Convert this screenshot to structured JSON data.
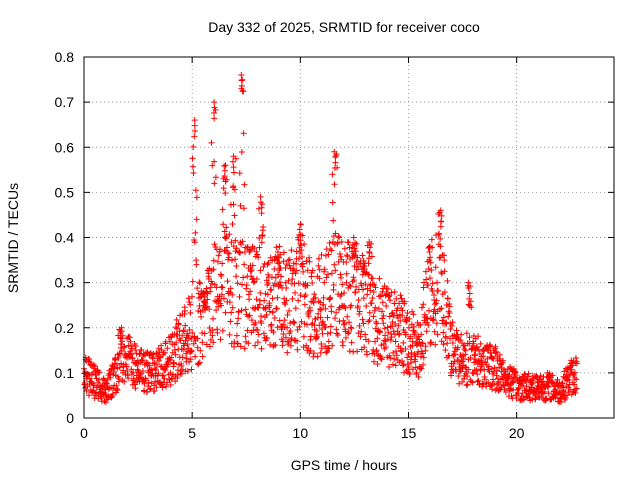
{
  "chart_data": {
    "type": "scatter",
    "title": "Day 332 of 2025, SRMTID for receiver coco",
    "xlabel": "GPS time / hours",
    "ylabel": "SRMTID / TECUs",
    "xlim": [
      0,
      24.5
    ],
    "ylim": [
      0,
      0.8
    ],
    "xticks": [
      0,
      5,
      10,
      15,
      20
    ],
    "yticks": [
      0,
      0.1,
      0.2,
      0.3,
      0.4,
      0.5,
      0.6,
      0.7,
      0.8
    ],
    "xtick_labels": [
      "0",
      "5",
      "10",
      "15",
      "20"
    ],
    "ytick_labels": [
      "0",
      "0.1",
      "0.2",
      "0.3",
      "0.4",
      "0.5",
      "0.6",
      "0.7",
      "0.8"
    ],
    "grid": true,
    "marker": "+",
    "color": "#ff0000",
    "x_range_data": [
      0,
      22.8
    ],
    "profile": [
      [
        0.0,
        0.1
      ],
      [
        0.5,
        0.08
      ],
      [
        1.0,
        0.06
      ],
      [
        1.5,
        0.1
      ],
      [
        2.0,
        0.13
      ],
      [
        2.5,
        0.11
      ],
      [
        3.0,
        0.1
      ],
      [
        3.5,
        0.11
      ],
      [
        4.0,
        0.13
      ],
      [
        4.5,
        0.17
      ],
      [
        5.0,
        0.19
      ],
      [
        5.5,
        0.22
      ],
      [
        6.0,
        0.27
      ],
      [
        6.5,
        0.29
      ],
      [
        7.0,
        0.28
      ],
      [
        7.5,
        0.27
      ],
      [
        8.0,
        0.26
      ],
      [
        8.5,
        0.25
      ],
      [
        9.0,
        0.25
      ],
      [
        9.5,
        0.26
      ],
      [
        10.0,
        0.28
      ],
      [
        10.5,
        0.24
      ],
      [
        11.0,
        0.25
      ],
      [
        11.5,
        0.28
      ],
      [
        12.0,
        0.28
      ],
      [
        12.5,
        0.26
      ],
      [
        13.0,
        0.24
      ],
      [
        13.5,
        0.22
      ],
      [
        14.0,
        0.2
      ],
      [
        14.5,
        0.2
      ],
      [
        15.0,
        0.17
      ],
      [
        15.5,
        0.16
      ],
      [
        16.0,
        0.27
      ],
      [
        16.5,
        0.3
      ],
      [
        17.0,
        0.15
      ],
      [
        17.5,
        0.13
      ],
      [
        18.0,
        0.13
      ],
      [
        18.5,
        0.12
      ],
      [
        19.0,
        0.11
      ],
      [
        19.5,
        0.09
      ],
      [
        20.0,
        0.07
      ],
      [
        20.5,
        0.07
      ],
      [
        21.0,
        0.07
      ],
      [
        21.5,
        0.07
      ],
      [
        22.0,
        0.06
      ],
      [
        22.5,
        0.09
      ],
      [
        22.8,
        0.1
      ]
    ],
    "peaks": [
      {
        "x": 5.1,
        "y": 0.66
      },
      {
        "x": 5.6,
        "y": 0.28
      },
      {
        "x": 6.0,
        "y": 0.7
      },
      {
        "x": 6.5,
        "y": 0.56
      },
      {
        "x": 6.9,
        "y": 0.58
      },
      {
        "x": 7.3,
        "y": 0.76
      },
      {
        "x": 8.2,
        "y": 0.49
      },
      {
        "x": 9.0,
        "y": 0.38
      },
      {
        "x": 10.0,
        "y": 0.43
      },
      {
        "x": 11.6,
        "y": 0.59
      },
      {
        "x": 12.5,
        "y": 0.4
      },
      {
        "x": 13.2,
        "y": 0.39
      },
      {
        "x": 16.0,
        "y": 0.38
      },
      {
        "x": 16.5,
        "y": 0.46
      },
      {
        "x": 17.8,
        "y": 0.3
      },
      {
        "x": 1.7,
        "y": 0.2
      },
      {
        "x": 12.9,
        "y": 0.36
      }
    ]
  }
}
